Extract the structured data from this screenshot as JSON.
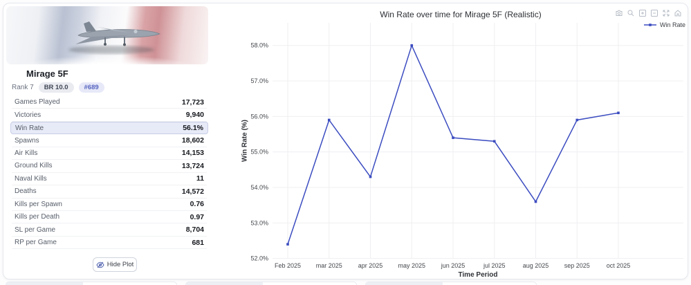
{
  "vehicle": {
    "name": "Mirage 5F",
    "rank": "Rank 7",
    "br_badge": "BR 10.0",
    "position_badge": "#689",
    "stats": [
      {
        "label": "Games Played",
        "value": "17,723",
        "highlight": false
      },
      {
        "label": "Victories",
        "value": "9,940",
        "highlight": false
      },
      {
        "label": "Win Rate",
        "value": "56.1%",
        "highlight": true
      },
      {
        "label": "Spawns",
        "value": "18,602",
        "highlight": false
      },
      {
        "label": "Air Kills",
        "value": "14,153",
        "highlight": false
      },
      {
        "label": "Ground Kills",
        "value": "13,724",
        "highlight": false
      },
      {
        "label": "Naval Kills",
        "value": "11",
        "highlight": false
      },
      {
        "label": "Deaths",
        "value": "14,572",
        "highlight": false
      },
      {
        "label": "Kills per Spawn",
        "value": "0.76",
        "highlight": false
      },
      {
        "label": "Kills per Death",
        "value": "0.97",
        "highlight": false
      },
      {
        "label": "SL per Game",
        "value": "8,704",
        "highlight": false
      },
      {
        "label": "RP per Game",
        "value": "681",
        "highlight": false
      }
    ],
    "hide_plot_label": "Hide Plot"
  },
  "chart": {
    "toolbar_icons": [
      "camera-icon",
      "zoom-icon",
      "zoom-in-icon",
      "zoom-out-icon",
      "autoscale-icon",
      "reset-axes-icon"
    ],
    "legend_label": "Win Rate"
  },
  "chart_data": {
    "type": "line",
    "title": "Win Rate over time for Mirage 5F (Realistic)",
    "categories": [
      "Feb 2025",
      "mar 2025",
      "apr 2025",
      "may 2025",
      "jun 2025",
      "jul 2025",
      "aug 2025",
      "sep 2025",
      "oct 2025"
    ],
    "series": [
      {
        "name": "Win Rate",
        "values": [
          52.4,
          55.9,
          54.3,
          58.0,
          55.4,
          55.3,
          53.6,
          55.9,
          56.1
        ],
        "color": "#3b4cc0"
      }
    ],
    "xlabel": "Time Period",
    "ylabel": "Win Rate (%)",
    "ylim": [
      52.0,
      58.6
    ],
    "yticks": [
      52,
      53,
      54,
      55,
      56,
      57,
      58
    ],
    "ytick_suffix": "%",
    "grid": true,
    "legend_position": "top-right",
    "colors": {
      "accent": "#3b4cc0",
      "grid": "#efeff2",
      "highlight_row": "#e7eaf7"
    }
  }
}
